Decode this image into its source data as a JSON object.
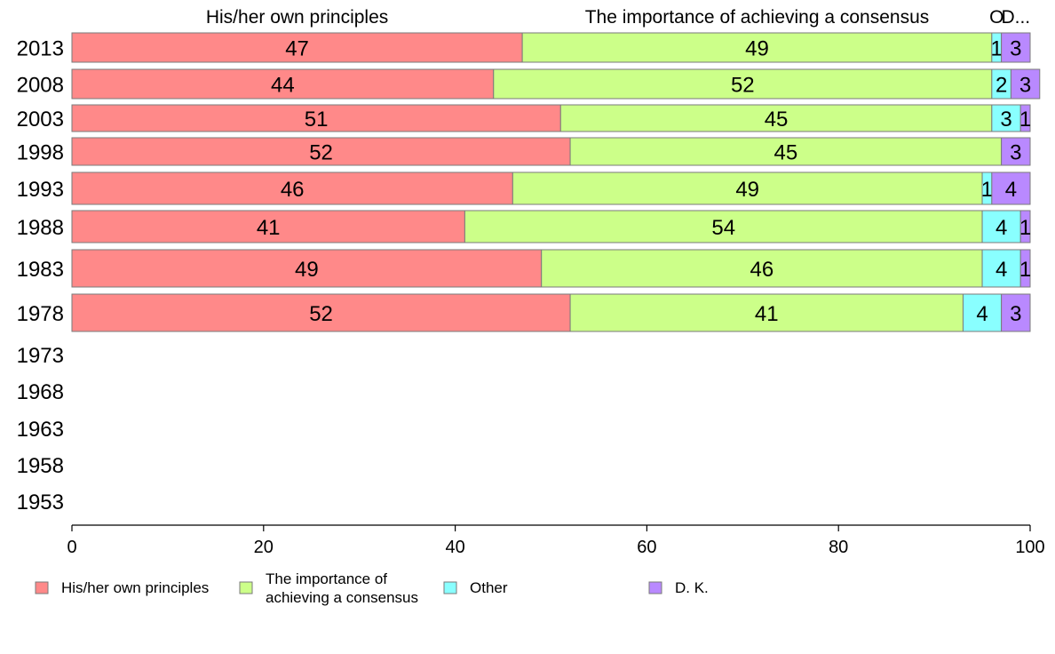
{
  "chart_data": {
    "type": "bar",
    "orientation": "horizontal",
    "stacked": true,
    "categories": [
      "2013",
      "2008",
      "2003",
      "1998",
      "1993",
      "1988",
      "1983",
      "1978",
      "1973",
      "1968",
      "1963",
      "1958",
      "1953"
    ],
    "series": [
      {
        "name": "His/her own principles",
        "color": "#ff8989",
        "values": [
          47,
          44,
          51,
          52,
          46,
          41,
          49,
          52,
          null,
          null,
          null,
          null,
          null
        ]
      },
      {
        "name": "The importance of achieving a consensus",
        "color": "#ccff89",
        "values": [
          49,
          52,
          45,
          45,
          49,
          54,
          46,
          41,
          null,
          null,
          null,
          null,
          null
        ]
      },
      {
        "name": "Other",
        "color": "#89ffff",
        "values": [
          1,
          2,
          3,
          0,
          1,
          4,
          4,
          4,
          null,
          null,
          null,
          null,
          null
        ]
      },
      {
        "name": "D. K.",
        "color": "#b989ff",
        "values": [
          3,
          3,
          1,
          3,
          4,
          1,
          1,
          3,
          null,
          null,
          null,
          null,
          null
        ]
      }
    ],
    "top_labels": [
      "His/her own principles",
      "The importance of achieving a consensus",
      "O",
      "D..."
    ],
    "legend_labels": [
      "His/her own principles",
      "The importance of\nachieving a consensus",
      "Other",
      "D. K."
    ],
    "xlim": [
      0,
      100
    ],
    "xticks": [
      0,
      20,
      40,
      60,
      80,
      100
    ],
    "grid": false,
    "legend_position": "bottom-left"
  }
}
